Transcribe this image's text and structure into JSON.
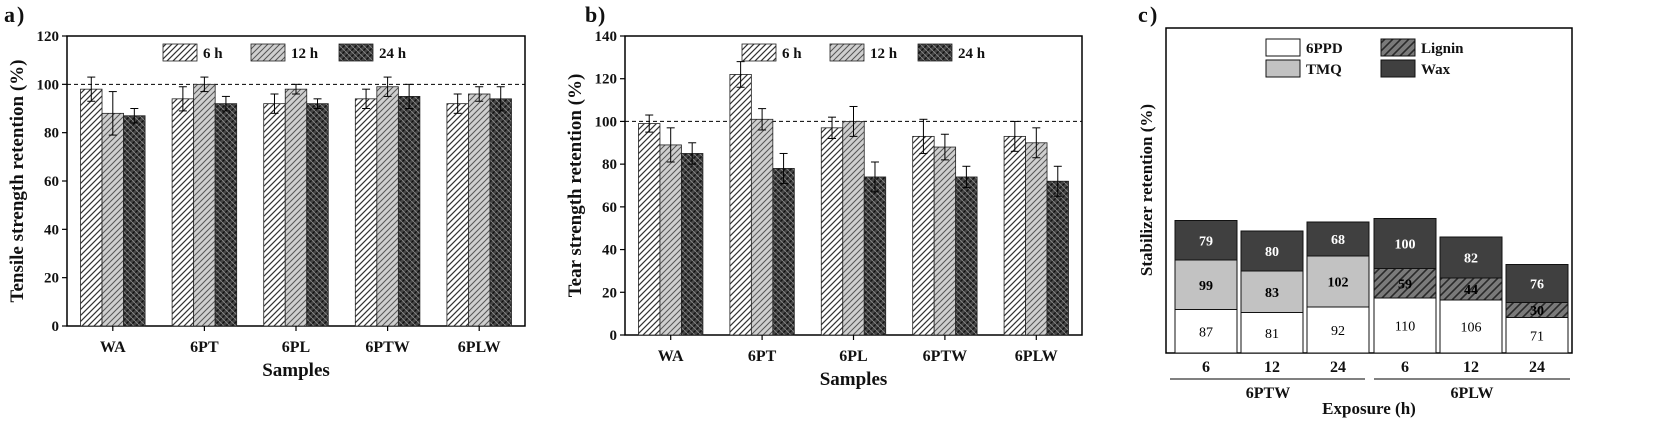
{
  "figure": {
    "panels": [
      "a",
      "b",
      "c"
    ],
    "legend_ab": [
      "6 h",
      "12 h",
      "24 h"
    ],
    "legend_c": [
      "6PPD",
      "Lignin",
      "TMQ",
      "Wax"
    ]
  },
  "chart_data": [
    {
      "type": "bar",
      "panel": "a",
      "title": "",
      "xlabel": "Samples",
      "ylabel": "Tensile strength retention (%)",
      "ylim": [
        0,
        120
      ],
      "yticks": [
        0,
        20,
        40,
        60,
        80,
        100,
        120
      ],
      "reference_line": 100,
      "categories": [
        "WA",
        "6PT",
        "6PL",
        "6PTW",
        "6PLW"
      ],
      "series": [
        {
          "name": "6 h",
          "values": [
            98,
            94,
            92,
            94,
            92
          ],
          "errors": [
            5,
            5,
            4,
            4,
            4
          ]
        },
        {
          "name": "12 h",
          "values": [
            88,
            100,
            98,
            99,
            96
          ],
          "errors": [
            9,
            3,
            2,
            4,
            3
          ]
        },
        {
          "name": "24 h",
          "values": [
            87,
            92,
            92,
            95,
            94
          ],
          "errors": [
            3,
            3,
            2,
            5,
            5
          ]
        }
      ]
    },
    {
      "type": "bar",
      "panel": "b",
      "title": "",
      "xlabel": "Samples",
      "ylabel": "Tear strength retention (%)",
      "ylim": [
        0,
        140
      ],
      "yticks": [
        0,
        20,
        40,
        60,
        80,
        100,
        120,
        140
      ],
      "reference_line": 100,
      "categories": [
        "WA",
        "6PT",
        "6PL",
        "6PTW",
        "6PLW"
      ],
      "series": [
        {
          "name": "6 h",
          "values": [
            99,
            122,
            97,
            93,
            93
          ],
          "errors": [
            4,
            6,
            5,
            8,
            7
          ]
        },
        {
          "name": "12 h",
          "values": [
            89,
            101,
            100,
            88,
            90
          ],
          "errors": [
            8,
            5,
            7,
            6,
            7
          ]
        },
        {
          "name": "24 h",
          "values": [
            85,
            78,
            74,
            74,
            72
          ],
          "errors": [
            5,
            7,
            7,
            5,
            7
          ]
        }
      ]
    },
    {
      "type": "stacked-bar",
      "panel": "c",
      "title": "",
      "xlabel": "Exposure (h)",
      "ylabel": "Stabilizer retention (%)",
      "categories": [
        "6",
        "12",
        "24",
        "6",
        "12",
        "24"
      ],
      "groups": [
        {
          "name": "6PTW",
          "categories": [
            "6",
            "12",
            "24"
          ]
        },
        {
          "name": "6PLW",
          "categories": [
            "6",
            "12",
            "24"
          ]
        }
      ],
      "series": [
        {
          "name": "6PPD",
          "values": [
            87,
            81,
            92,
            110,
            106,
            71
          ]
        },
        {
          "name": "TMQ",
          "values": [
            99,
            83,
            102,
            null,
            null,
            null
          ]
        },
        {
          "name": "Lignin",
          "values": [
            null,
            null,
            null,
            59,
            44,
            30
          ]
        },
        {
          "name": "Wax",
          "values": [
            79,
            80,
            68,
            100,
            82,
            76
          ]
        }
      ]
    }
  ]
}
